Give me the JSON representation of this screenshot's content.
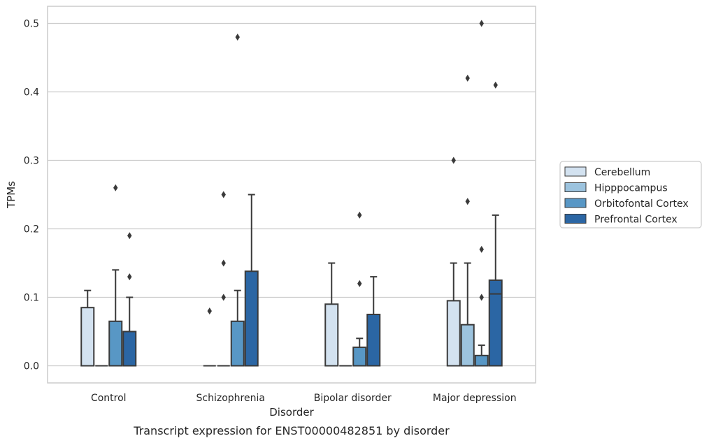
{
  "chart_data": {
    "type": "box",
    "categories": [
      "Control",
      "Schizophrenia",
      "Bipolar disorder",
      "Major depression"
    ],
    "xlabel": "Disorder",
    "ylabel": "TPMs",
    "caption": "Transcript expression for ENST00000482851 by disorder",
    "ylim": [
      -0.025,
      0.525
    ],
    "yticks": [
      0.0,
      0.1,
      0.2,
      0.3,
      0.4,
      0.5
    ],
    "ytick_labels": [
      "0.0",
      "0.1",
      "0.2",
      "0.3",
      "0.4",
      "0.5"
    ],
    "grid": "y",
    "legend_position": "right",
    "series": [
      {
        "name": "Cerebellum",
        "color": "#d3e2f0",
        "boxes": [
          {
            "q1": 0.0,
            "median": 0.0,
            "q3": 0.085,
            "whisker_low": 0.0,
            "whisker_high": 0.11,
            "outliers": []
          },
          {
            "q1": 0.0,
            "median": 0.0,
            "q3": 0.0,
            "whisker_low": 0.0,
            "whisker_high": 0.0,
            "outliers": [
              0.08
            ]
          },
          {
            "q1": 0.0,
            "median": 0.0,
            "q3": 0.09,
            "whisker_low": 0.0,
            "whisker_high": 0.15,
            "outliers": []
          },
          {
            "q1": 0.0,
            "median": 0.0,
            "q3": 0.095,
            "whisker_low": 0.0,
            "whisker_high": 0.15,
            "outliers": [
              0.3
            ]
          }
        ]
      },
      {
        "name": "Hipppocampus",
        "color": "#9cc3de",
        "boxes": [
          {
            "q1": 0.0,
            "median": 0.0,
            "q3": 0.0,
            "whisker_low": 0.0,
            "whisker_high": 0.0,
            "outliers": []
          },
          {
            "q1": 0.0,
            "median": 0.0,
            "q3": 0.0,
            "whisker_low": 0.0,
            "whisker_high": 0.0,
            "outliers": [
              0.1,
              0.15,
              0.25
            ]
          },
          {
            "q1": 0.0,
            "median": 0.0,
            "q3": 0.0,
            "whisker_low": 0.0,
            "whisker_high": 0.0,
            "outliers": []
          },
          {
            "q1": 0.0,
            "median": 0.0,
            "q3": 0.06,
            "whisker_low": 0.0,
            "whisker_high": 0.15,
            "outliers": [
              0.24,
              0.42
            ]
          }
        ]
      },
      {
        "name": "Orbitofontal Cortex",
        "color": "#5897c5",
        "boxes": [
          {
            "q1": 0.0,
            "median": 0.0,
            "q3": 0.065,
            "whisker_low": 0.0,
            "whisker_high": 0.14,
            "outliers": [
              0.26
            ]
          },
          {
            "q1": 0.0,
            "median": 0.0,
            "q3": 0.065,
            "whisker_low": 0.0,
            "whisker_high": 0.11,
            "outliers": [
              0.48
            ]
          },
          {
            "q1": 0.0,
            "median": 0.0,
            "q3": 0.027,
            "whisker_low": 0.0,
            "whisker_high": 0.04,
            "outliers": [
              0.12,
              0.22
            ]
          },
          {
            "q1": 0.0,
            "median": 0.0,
            "q3": 0.015,
            "whisker_low": 0.0,
            "whisker_high": 0.03,
            "outliers": [
              0.1,
              0.17,
              0.5
            ]
          }
        ]
      },
      {
        "name": "Prefrontal Cortex",
        "color": "#2b66a4",
        "boxes": [
          {
            "q1": 0.0,
            "median": 0.0,
            "q3": 0.05,
            "whisker_low": 0.0,
            "whisker_high": 0.1,
            "outliers": [
              0.13,
              0.19
            ]
          },
          {
            "q1": 0.0,
            "median": 0.0,
            "q3": 0.138,
            "whisker_low": 0.0,
            "whisker_high": 0.25,
            "outliers": []
          },
          {
            "q1": 0.0,
            "median": 0.0,
            "q3": 0.075,
            "whisker_low": 0.0,
            "whisker_high": 0.13,
            "outliers": []
          },
          {
            "q1": 0.0,
            "median": 0.105,
            "q3": 0.125,
            "whisker_low": 0.0,
            "whisker_high": 0.22,
            "outliers": [
              0.41
            ]
          }
        ]
      }
    ]
  }
}
